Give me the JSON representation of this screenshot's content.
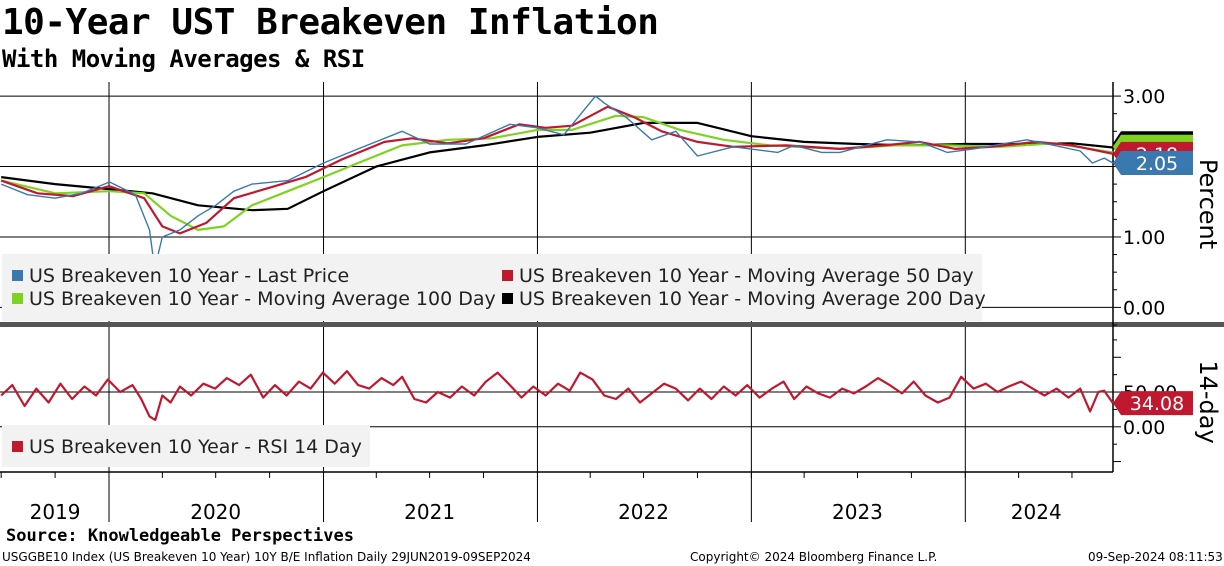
{
  "title": "10-Year UST Breakeven Inflation",
  "subtitle": "With Moving Averages & RSI",
  "colors": {
    "last_price": "#3a78b0",
    "ma50": "#c0182e",
    "ma100": "#7ed321",
    "ma200": "#000000",
    "rsi": "#c0182e"
  },
  "chart_data": [
    {
      "type": "line",
      "panel": "price",
      "ylabel": "Percent",
      "ylim": [
        -0.25,
        3.2
      ],
      "yticks": [
        "3.00",
        "1.00",
        "0.00"
      ],
      "xlim": [
        "2019-06-29",
        "2024-09-09"
      ],
      "x_labels": [
        "2019",
        "2020",
        "2021",
        "2022",
        "2023",
        "2024"
      ],
      "grid": true,
      "legend_position": "bottom-left",
      "last_value_label": "2.05",
      "series": [
        {
          "name": "US Breakeven 10 Year - Last Price",
          "color": "#3a78b0",
          "points": [
            [
              "2019-07-01",
              1.75
            ],
            [
              "2019-08-15",
              1.6
            ],
            [
              "2019-10-01",
              1.55
            ],
            [
              "2019-11-15",
              1.62
            ],
            [
              "2020-01-02",
              1.78
            ],
            [
              "2020-02-15",
              1.6
            ],
            [
              "2020-03-10",
              1.1
            ],
            [
              "2020-03-19",
              0.55
            ],
            [
              "2020-04-01",
              1.0
            ],
            [
              "2020-05-01",
              1.1
            ],
            [
              "2020-06-01",
              1.3
            ],
            [
              "2020-07-01",
              1.45
            ],
            [
              "2020-08-01",
              1.65
            ],
            [
              "2020-09-01",
              1.75
            ],
            [
              "2020-11-01",
              1.8
            ],
            [
              "2021-01-01",
              2.05
            ],
            [
              "2021-03-01",
              2.25
            ],
            [
              "2021-05-15",
              2.5
            ],
            [
              "2021-07-01",
              2.32
            ],
            [
              "2021-09-01",
              2.32
            ],
            [
              "2021-11-15",
              2.6
            ],
            [
              "2022-01-01",
              2.55
            ],
            [
              "2022-02-15",
              2.45
            ],
            [
              "2022-04-10",
              3.0
            ],
            [
              "2022-04-25",
              2.9
            ],
            [
              "2022-06-01",
              2.7
            ],
            [
              "2022-07-15",
              2.38
            ],
            [
              "2022-08-25",
              2.5
            ],
            [
              "2022-10-01",
              2.15
            ],
            [
              "2022-12-01",
              2.28
            ],
            [
              "2023-02-15",
              2.2
            ],
            [
              "2023-03-15",
              2.3
            ],
            [
              "2023-05-01",
              2.2
            ],
            [
              "2023-06-01",
              2.2
            ],
            [
              "2023-08-20",
              2.38
            ],
            [
              "2023-10-15",
              2.35
            ],
            [
              "2023-12-01",
              2.2
            ],
            [
              "2024-01-15",
              2.25
            ],
            [
              "2024-04-15",
              2.38
            ],
            [
              "2024-06-01",
              2.3
            ],
            [
              "2024-07-15",
              2.22
            ],
            [
              "2024-08-05",
              2.05
            ],
            [
              "2024-08-25",
              2.12
            ],
            [
              "2024-09-09",
              2.05
            ]
          ]
        },
        {
          "name": "US Breakeven 10 Year - Moving Average 50 Day",
          "color": "#c0182e",
          "points": [
            [
              "2019-07-01",
              1.8
            ],
            [
              "2019-09-01",
              1.62
            ],
            [
              "2019-11-01",
              1.58
            ],
            [
              "2020-01-01",
              1.72
            ],
            [
              "2020-03-01",
              1.55
            ],
            [
              "2020-04-01",
              1.15
            ],
            [
              "2020-05-01",
              1.05
            ],
            [
              "2020-06-15",
              1.2
            ],
            [
              "2020-08-01",
              1.55
            ],
            [
              "2020-10-01",
              1.7
            ],
            [
              "2020-12-01",
              1.85
            ],
            [
              "2021-02-01",
              2.1
            ],
            [
              "2021-04-15",
              2.35
            ],
            [
              "2021-06-01",
              2.4
            ],
            [
              "2021-08-01",
              2.33
            ],
            [
              "2021-10-01",
              2.4
            ],
            [
              "2021-12-01",
              2.6
            ],
            [
              "2022-01-15",
              2.55
            ],
            [
              "2022-03-01",
              2.58
            ],
            [
              "2022-05-01",
              2.85
            ],
            [
              "2022-06-15",
              2.7
            ],
            [
              "2022-08-01",
              2.5
            ],
            [
              "2022-10-01",
              2.35
            ],
            [
              "2022-12-01",
              2.28
            ],
            [
              "2023-03-01",
              2.3
            ],
            [
              "2023-06-01",
              2.25
            ],
            [
              "2023-08-15",
              2.3
            ],
            [
              "2023-10-15",
              2.35
            ],
            [
              "2023-12-15",
              2.25
            ],
            [
              "2024-02-15",
              2.28
            ],
            [
              "2024-05-01",
              2.35
            ],
            [
              "2024-07-01",
              2.3
            ],
            [
              "2024-09-09",
              2.18
            ]
          ]
        },
        {
          "name": "US Breakeven 10 Year - Moving Average 100 Day",
          "color": "#7ed321",
          "points": [
            [
              "2019-07-01",
              1.8
            ],
            [
              "2019-10-01",
              1.62
            ],
            [
              "2020-01-01",
              1.65
            ],
            [
              "2020-03-01",
              1.62
            ],
            [
              "2020-04-15",
              1.3
            ],
            [
              "2020-06-01",
              1.1
            ],
            [
              "2020-07-15",
              1.15
            ],
            [
              "2020-09-01",
              1.45
            ],
            [
              "2020-11-01",
              1.65
            ],
            [
              "2021-01-01",
              1.85
            ],
            [
              "2021-03-01",
              2.05
            ],
            [
              "2021-05-15",
              2.3
            ],
            [
              "2021-08-01",
              2.38
            ],
            [
              "2021-10-15",
              2.4
            ],
            [
              "2022-01-01",
              2.52
            ],
            [
              "2022-03-01",
              2.52
            ],
            [
              "2022-05-15",
              2.72
            ],
            [
              "2022-07-01",
              2.7
            ],
            [
              "2022-09-01",
              2.52
            ],
            [
              "2022-11-15",
              2.38
            ],
            [
              "2023-02-01",
              2.3
            ],
            [
              "2023-06-01",
              2.25
            ],
            [
              "2023-09-01",
              2.3
            ],
            [
              "2023-12-01",
              2.3
            ],
            [
              "2024-03-01",
              2.28
            ],
            [
              "2024-06-01",
              2.33
            ],
            [
              "2024-09-09",
              2.2
            ]
          ]
        },
        {
          "name": "US Breakeven 10 Year - Moving Average 200 Day",
          "color": "#000000",
          "points": [
            [
              "2019-07-01",
              1.85
            ],
            [
              "2019-10-01",
              1.75
            ],
            [
              "2020-01-01",
              1.68
            ],
            [
              "2020-03-15",
              1.62
            ],
            [
              "2020-06-01",
              1.45
            ],
            [
              "2020-09-01",
              1.38
            ],
            [
              "2020-11-01",
              1.4
            ],
            [
              "2021-01-01",
              1.65
            ],
            [
              "2021-04-01",
              2.0
            ],
            [
              "2021-07-01",
              2.2
            ],
            [
              "2021-10-01",
              2.3
            ],
            [
              "2022-01-01",
              2.42
            ],
            [
              "2022-04-01",
              2.48
            ],
            [
              "2022-07-01",
              2.62
            ],
            [
              "2022-10-01",
              2.62
            ],
            [
              "2023-01-01",
              2.43
            ],
            [
              "2023-04-01",
              2.35
            ],
            [
              "2023-07-01",
              2.32
            ],
            [
              "2023-10-01",
              2.3
            ],
            [
              "2024-01-01",
              2.32
            ],
            [
              "2024-04-01",
              2.32
            ],
            [
              "2024-07-01",
              2.33
            ],
            [
              "2024-09-09",
              2.27
            ]
          ]
        }
      ]
    },
    {
      "type": "line",
      "panel": "rsi",
      "ylabel": "14-day",
      "ylim": [
        -65,
        145
      ],
      "yticks": [
        "50.00",
        "0.00"
      ],
      "xlim": [
        "2019-06-29",
        "2024-09-09"
      ],
      "grid": true,
      "legend_position": "bottom-left",
      "last_value_label": "34.08",
      "series": [
        {
          "name": "US Breakeven 10 Year - RSI 14 Day",
          "color": "#c0182e",
          "points": [
            [
              "2019-07-01",
              45
            ],
            [
              "2019-07-20",
              60
            ],
            [
              "2019-08-10",
              30
            ],
            [
              "2019-08-30",
              55
            ],
            [
              "2019-09-20",
              35
            ],
            [
              "2019-10-10",
              62
            ],
            [
              "2019-10-30",
              40
            ],
            [
              "2019-11-20",
              58
            ],
            [
              "2019-12-10",
              45
            ],
            [
              "2019-12-30",
              68
            ],
            [
              "2020-01-20",
              50
            ],
            [
              "2020-02-10",
              60
            ],
            [
              "2020-02-25",
              40
            ],
            [
              "2020-03-10",
              15
            ],
            [
              "2020-03-20",
              10
            ],
            [
              "2020-04-01",
              45
            ],
            [
              "2020-04-15",
              35
            ],
            [
              "2020-05-01",
              58
            ],
            [
              "2020-05-20",
              45
            ],
            [
              "2020-06-10",
              62
            ],
            [
              "2020-06-30",
              55
            ],
            [
              "2020-07-20",
              70
            ],
            [
              "2020-08-10",
              60
            ],
            [
              "2020-08-30",
              75
            ],
            [
              "2020-09-20",
              42
            ],
            [
              "2020-10-10",
              60
            ],
            [
              "2020-10-30",
              45
            ],
            [
              "2020-11-20",
              65
            ],
            [
              "2020-12-10",
              55
            ],
            [
              "2020-12-31",
              78
            ],
            [
              "2021-01-20",
              62
            ],
            [
              "2021-02-10",
              80
            ],
            [
              "2021-03-01",
              60
            ],
            [
              "2021-03-20",
              55
            ],
            [
              "2021-04-10",
              70
            ],
            [
              "2021-04-30",
              60
            ],
            [
              "2021-05-15",
              72
            ],
            [
              "2021-06-05",
              40
            ],
            [
              "2021-06-25",
              35
            ],
            [
              "2021-07-15",
              50
            ],
            [
              "2021-08-05",
              42
            ],
            [
              "2021-08-25",
              58
            ],
            [
              "2021-09-15",
              45
            ],
            [
              "2021-10-05",
              65
            ],
            [
              "2021-10-25",
              78
            ],
            [
              "2021-11-15",
              60
            ],
            [
              "2021-12-05",
              42
            ],
            [
              "2021-12-25",
              58
            ],
            [
              "2022-01-15",
              45
            ],
            [
              "2022-02-05",
              62
            ],
            [
              "2022-02-25",
              52
            ],
            [
              "2022-03-15",
              78
            ],
            [
              "2022-04-05",
              68
            ],
            [
              "2022-04-25",
              45
            ],
            [
              "2022-05-15",
              40
            ],
            [
              "2022-06-05",
              55
            ],
            [
              "2022-06-25",
              35
            ],
            [
              "2022-07-15",
              48
            ],
            [
              "2022-08-05",
              62
            ],
            [
              "2022-08-25",
              55
            ],
            [
              "2022-09-15",
              38
            ],
            [
              "2022-10-05",
              55
            ],
            [
              "2022-10-25",
              40
            ],
            [
              "2022-11-15",
              58
            ],
            [
              "2022-12-05",
              45
            ],
            [
              "2022-12-25",
              60
            ],
            [
              "2023-01-15",
              42
            ],
            [
              "2023-02-05",
              55
            ],
            [
              "2023-02-25",
              65
            ],
            [
              "2023-03-15",
              40
            ],
            [
              "2023-04-05",
              58
            ],
            [
              "2023-04-25",
              48
            ],
            [
              "2023-05-15",
              42
            ],
            [
              "2023-06-05",
              55
            ],
            [
              "2023-06-25",
              48
            ],
            [
              "2023-07-15",
              58
            ],
            [
              "2023-08-05",
              70
            ],
            [
              "2023-08-25",
              60
            ],
            [
              "2023-09-15",
              48
            ],
            [
              "2023-10-05",
              65
            ],
            [
              "2023-10-25",
              45
            ],
            [
              "2023-11-15",
              35
            ],
            [
              "2023-12-05",
              42
            ],
            [
              "2023-12-25",
              72
            ],
            [
              "2024-01-15",
              55
            ],
            [
              "2024-02-05",
              62
            ],
            [
              "2024-02-25",
              50
            ],
            [
              "2024-03-15",
              58
            ],
            [
              "2024-04-05",
              65
            ],
            [
              "2024-04-25",
              55
            ],
            [
              "2024-05-15",
              45
            ],
            [
              "2024-06-05",
              55
            ],
            [
              "2024-06-25",
              42
            ],
            [
              "2024-07-15",
              55
            ],
            [
              "2024-08-01",
              22
            ],
            [
              "2024-08-15",
              50
            ],
            [
              "2024-08-25",
              52
            ],
            [
              "2024-09-09",
              34
            ]
          ]
        }
      ]
    }
  ],
  "legends": {
    "price": [
      {
        "label": "US Breakeven 10 Year - Last Price",
        "color": "#3a78b0"
      },
      {
        "label": "US Breakeven 10 Year - Moving Average 50 Day",
        "color": "#c0182e"
      },
      {
        "label": "US Breakeven 10 Year - Moving Average 100 Day",
        "color": "#7ed321"
      },
      {
        "label": "US Breakeven 10 Year - Moving Average 200 Day",
        "color": "#000000"
      }
    ],
    "rsi": [
      {
        "label": "US Breakeven 10 Year - RSI 14 Day",
        "color": "#c0182e"
      }
    ]
  },
  "last_label_partial": "2.18",
  "footer": {
    "source": "Source: Knowledgeable Perspectives",
    "ticker_info": "USGGBE10 Index (US Breakeven 10 Year) 10Y B/E Inflation  Daily 29JUN2019-09SEP2024",
    "copyright": "Copyright© 2024 Bloomberg Finance L.P.",
    "timestamp": "09-Sep-2024 08:11:53"
  }
}
